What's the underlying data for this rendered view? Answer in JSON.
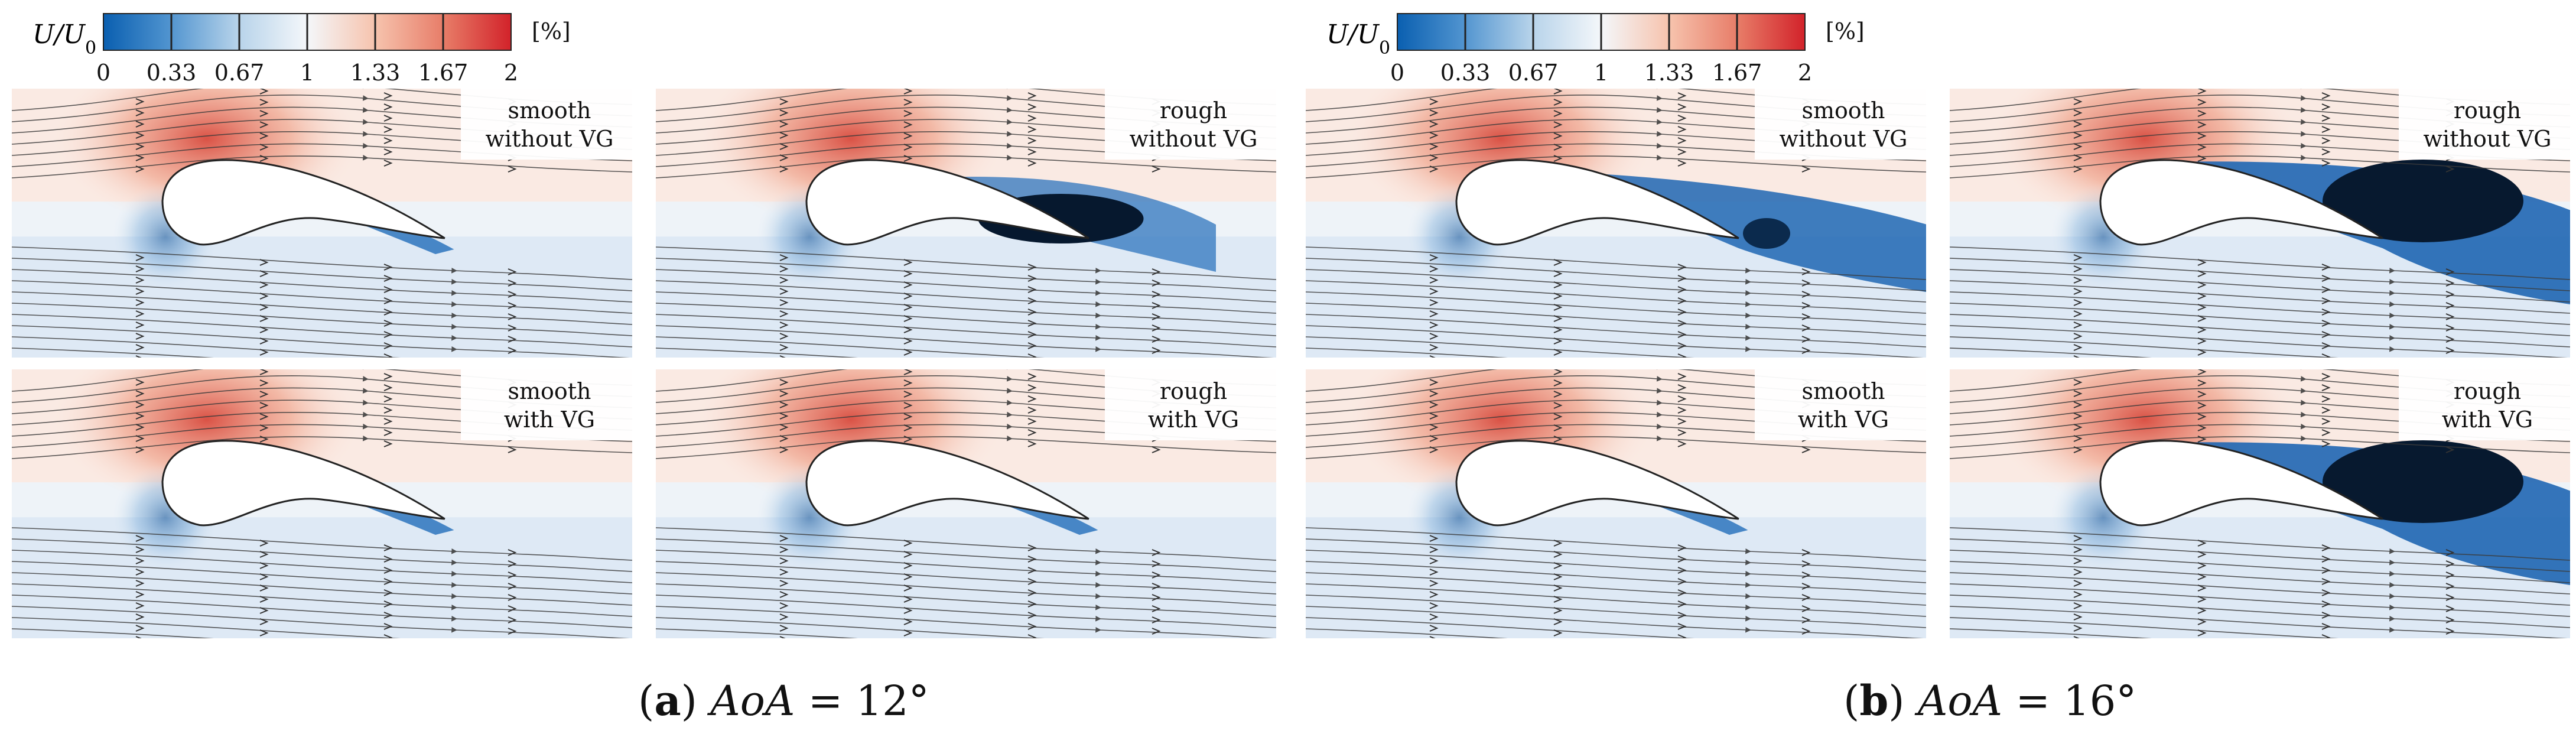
{
  "colorbar": {
    "variable": "U/U",
    "subscript": "0",
    "unit": "[%]",
    "ticks": [
      "0",
      "0.33",
      "0.67",
      "1",
      "1.33",
      "1.67",
      "2"
    ],
    "colors": {
      "low": "#0a5fb0",
      "mid": "#f4f7fa",
      "high": "#d2222a"
    }
  },
  "groups": [
    {
      "id": "a",
      "caption_letter": "a",
      "caption_expr": "AoA",
      "caption_value": "= 12°",
      "panels": [
        {
          "label_line1": "smooth",
          "label_line2": "without VG",
          "wake": "thin"
        },
        {
          "label_line1": "rough",
          "label_line2": "without VG",
          "wake": "vortex"
        },
        {
          "label_line1": "smooth",
          "label_line2": "with VG",
          "wake": "thin"
        },
        {
          "label_line1": "rough",
          "label_line2": "with VG",
          "wake": "thin"
        }
      ]
    },
    {
      "id": "b",
      "caption_letter": "b",
      "caption_expr": "AoA",
      "caption_value": "= 16°",
      "panels": [
        {
          "label_line1": "smooth",
          "label_line2": "without VG",
          "wake": "separated"
        },
        {
          "label_line1": "rough",
          "label_line2": "without VG",
          "wake": "large"
        },
        {
          "label_line1": "smooth",
          "label_line2": "with VG",
          "wake": "thin"
        },
        {
          "label_line1": "rough",
          "label_line2": "with VG",
          "wake": "large"
        }
      ]
    }
  ]
}
